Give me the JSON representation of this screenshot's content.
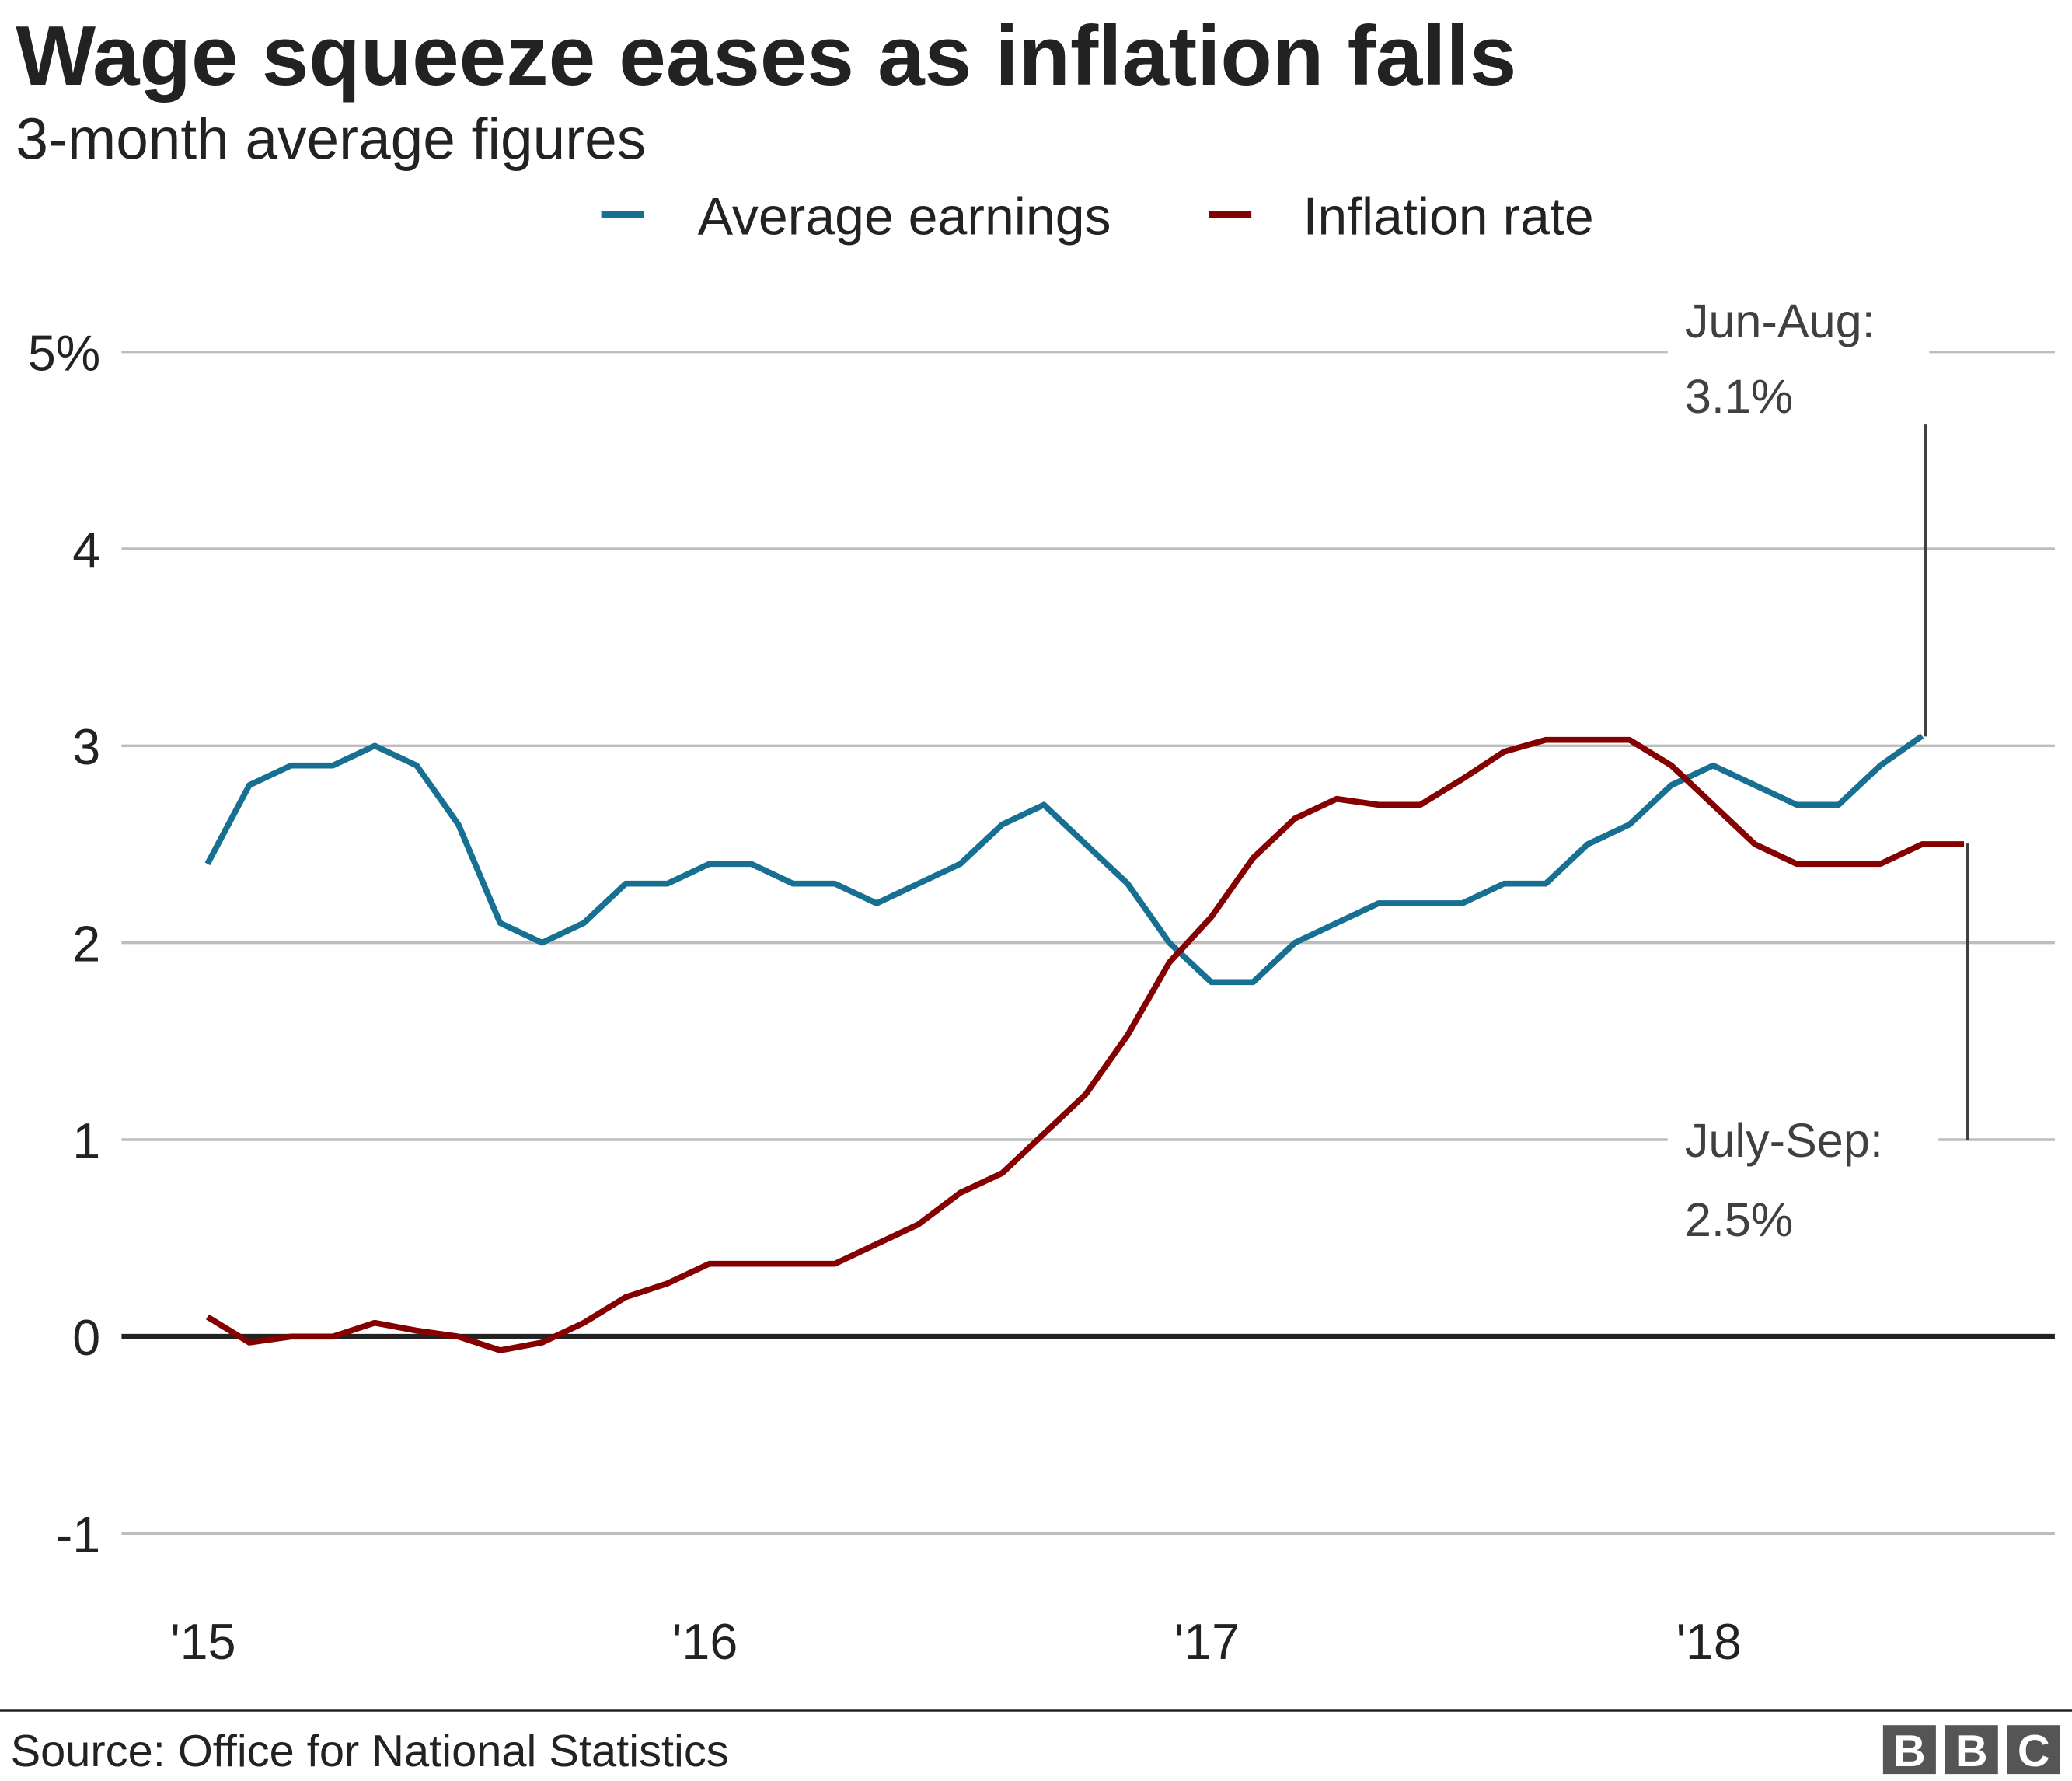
{
  "chart_data": {
    "type": "line",
    "title": "Wage squeeze eases as inflation falls",
    "subtitle": "3-month average figures",
    "source": "Source: Office for National Statistics",
    "logo": "BBC",
    "ylim": [
      -1,
      5
    ],
    "yticks": [
      -1,
      0,
      1,
      2,
      3,
      4,
      5
    ],
    "ytick_labels": [
      "-1",
      "0",
      "1",
      "2",
      "3",
      "4",
      "5%"
    ],
    "x_start": "2015-01",
    "xticks": [
      "2015-01",
      "2016-01",
      "2017-01",
      "2018-01"
    ],
    "xtick_labels": [
      "'15",
      "'16",
      "'17",
      "'18"
    ],
    "grid": true,
    "legend_position": "top-center",
    "series": [
      {
        "name": "Average earnings",
        "color": "#176f92",
        "values": [
          2.4,
          2.8,
          2.9,
          2.9,
          3.0,
          2.9,
          2.6,
          2.1,
          2.0,
          2.1,
          2.3,
          2.3,
          2.4,
          2.4,
          2.3,
          2.3,
          2.2,
          2.3,
          2.4,
          2.6,
          2.7,
          2.5,
          2.3,
          2.0,
          1.8,
          1.8,
          2.0,
          2.1,
          2.2,
          2.2,
          2.2,
          2.3,
          2.3,
          2.5,
          2.6,
          2.8,
          2.9,
          2.8,
          2.7,
          2.7,
          2.9,
          3.05
        ]
      },
      {
        "name": "Inflation rate",
        "color": "#850000",
        "values": [
          0.1,
          -0.03,
          0,
          0,
          0.07,
          0.03,
          0,
          -0.07,
          -0.03,
          0.07,
          0.2,
          0.27,
          0.37,
          0.37,
          0.37,
          0.37,
          0.47,
          0.57,
          0.73,
          0.83,
          1.03,
          1.23,
          1.53,
          1.9,
          2.13,
          2.43,
          2.63,
          2.73,
          2.7,
          2.7,
          2.83,
          2.97,
          3.03,
          3.03,
          3.03,
          2.9,
          2.7,
          2.5,
          2.4,
          2.4,
          2.4,
          2.5,
          2.5
        ]
      }
    ],
    "annotations": [
      {
        "series": "Average earnings",
        "line1": "Jun-Aug:",
        "line2": "3.1%"
      },
      {
        "series": "Inflation rate",
        "line1": "July-Sep:",
        "line2": "2.5%"
      }
    ]
  }
}
